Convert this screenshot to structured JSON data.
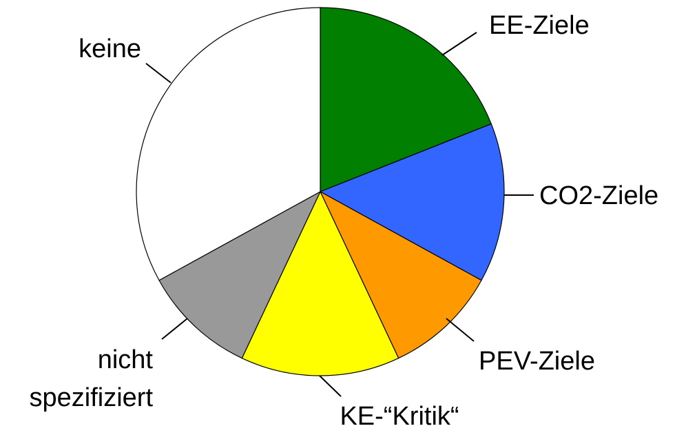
{
  "chart_data": {
    "type": "pie",
    "categories": [
      "EE-Ziele",
      "CO2-Ziele",
      "PEV-Ziele",
      "KE-“Kritik“",
      "nicht spezifiziert",
      "keine"
    ],
    "values": [
      19,
      14,
      10,
      14,
      10,
      33
    ],
    "colors": [
      "#007f00",
      "#3366ff",
      "#ff9900",
      "#ffff00",
      "#999999",
      "#ffffff"
    ]
  }
}
